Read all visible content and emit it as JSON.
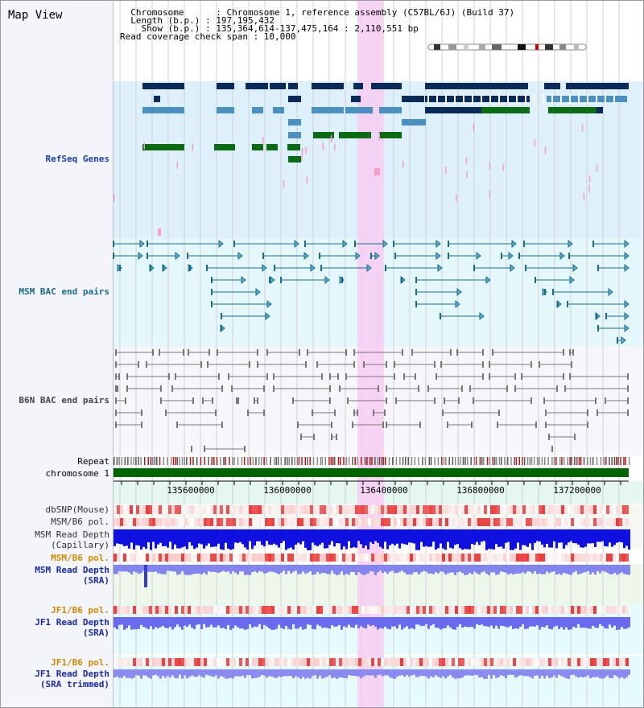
{
  "view": {
    "title": "Map View"
  },
  "header": {
    "lines": [
      "  Chromosome      : Chromosome 1, reference assembly (C57BL/6J) (Build 37)",
      "  Length (b.p.) : 197,195,432",
      "    Show (b.p.) : 135,364,614-137,475,164 : 2,110,551 bp",
      "Read coverage check span : 10,000"
    ]
  },
  "tracks": {
    "refseq": "RefSeq Genes",
    "msm_bac": "MSM BAC end pairs",
    "b6n_bac": "B6N BAC end pairs",
    "repeat": "Repeat",
    "chromosome": "chromosome 1",
    "dbsnp": "dbSNP(Mouse)",
    "msm_pol1": "MSM/B6 pol.",
    "msm_depth_cap_1": "MSM Read Depth",
    "msm_depth_cap_2": "(Capillary)",
    "msm_pol2": "MSM/B6 pol.",
    "msm_depth_sra_1": "MSM Read Depth",
    "msm_depth_sra_2": "(SRA)",
    "jf1_pol1": "JF1/B6 pol.",
    "jf1_depth_sra_1": "JF1 Read Depth",
    "jf1_depth_sra_2": "(SRA)",
    "jf1_pol2": "JF1/B6 pol.",
    "jf1_depth_trim_1": "JF1 Read Depth",
    "jf1_depth_trim_2": "(SRA trimmed)"
  },
  "axis": {
    "ticks": [
      "135600000",
      "136000000",
      "136400000",
      "136800000",
      "137200000"
    ]
  },
  "colors": {
    "refseq_label": "#1a3faa",
    "bac_label": "#1a6a8a",
    "b6n_label": "#444444",
    "pol_label": "#d08a00",
    "depth_label": "#1a2aa0",
    "highlight": "#f7cdf2",
    "chrom_bar": "#006400"
  }
}
